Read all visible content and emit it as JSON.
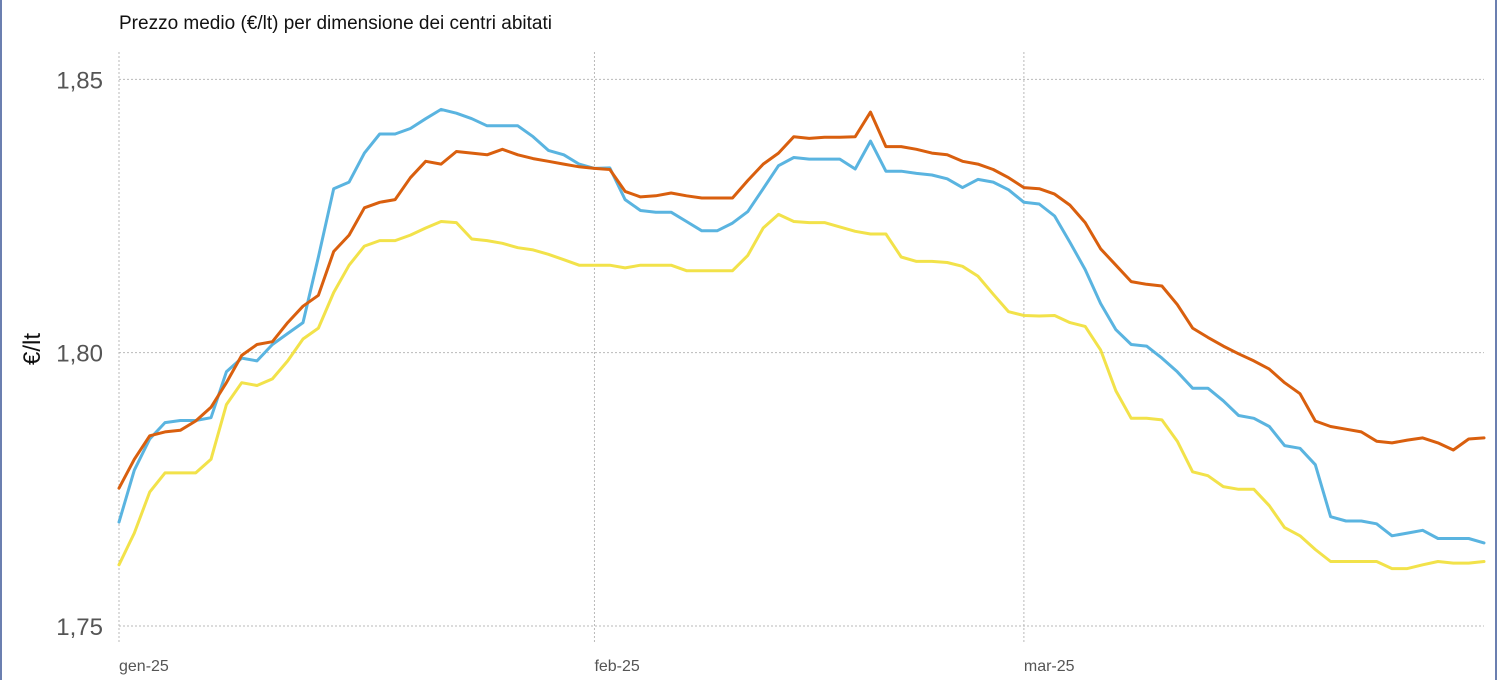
{
  "title": "Prezzo medio (€/lt) per dimensione dei centri abitati",
  "chart_data": {
    "type": "line",
    "title": "Prezzo medio (€/lt) per dimensione dei centri abitati",
    "xlabel": "",
    "ylabel": "€/lt",
    "ylim": [
      1.75,
      1.855
    ],
    "yticks": [
      1.75,
      1.8,
      1.85
    ],
    "ytick_labels": [
      "1,75",
      "1,80",
      "1,85"
    ],
    "xticks": [
      "2025-01-01",
      "2025-02-01",
      "2025-03-01"
    ],
    "xtick_labels": [
      "gen-25",
      "feb-25",
      "mar-25"
    ],
    "x_range": [
      "2025-01-01",
      "2025-03-31"
    ],
    "grid": true,
    "legend": "none",
    "colors": {
      "orange": "#d95f0e",
      "blue": "#5ab4e0",
      "yellow": "#f2e24a",
      "grid": "#b9b9b9"
    },
    "x": [
      "2025-01-01",
      "2025-01-02",
      "2025-01-03",
      "2025-01-04",
      "2025-01-05",
      "2025-01-06",
      "2025-01-07",
      "2025-01-08",
      "2025-01-09",
      "2025-01-10",
      "2025-01-11",
      "2025-01-12",
      "2025-01-13",
      "2025-01-14",
      "2025-01-15",
      "2025-01-16",
      "2025-01-17",
      "2025-01-18",
      "2025-01-19",
      "2025-01-20",
      "2025-01-21",
      "2025-01-22",
      "2025-01-23",
      "2025-01-24",
      "2025-01-25",
      "2025-01-26",
      "2025-01-27",
      "2025-01-28",
      "2025-01-29",
      "2025-01-30",
      "2025-01-31",
      "2025-02-01",
      "2025-02-02",
      "2025-02-03",
      "2025-02-04",
      "2025-02-05",
      "2025-02-06",
      "2025-02-07",
      "2025-02-08",
      "2025-02-09",
      "2025-02-10",
      "2025-02-11",
      "2025-02-12",
      "2025-02-13",
      "2025-02-14",
      "2025-02-15",
      "2025-02-16",
      "2025-02-17",
      "2025-02-18",
      "2025-02-19",
      "2025-02-20",
      "2025-02-21",
      "2025-02-22",
      "2025-02-23",
      "2025-02-24",
      "2025-02-25",
      "2025-02-26",
      "2025-02-27",
      "2025-02-28",
      "2025-03-01",
      "2025-03-02",
      "2025-03-03",
      "2025-03-04",
      "2025-03-05",
      "2025-03-06",
      "2025-03-07",
      "2025-03-08",
      "2025-03-09",
      "2025-03-10",
      "2025-03-11",
      "2025-03-12",
      "2025-03-13",
      "2025-03-14",
      "2025-03-15",
      "2025-03-16",
      "2025-03-17",
      "2025-03-18",
      "2025-03-19",
      "2025-03-20",
      "2025-03-21",
      "2025-03-22",
      "2025-03-23",
      "2025-03-24",
      "2025-03-25",
      "2025-03-26",
      "2025-03-27",
      "2025-03-28",
      "2025-03-29",
      "2025-03-30",
      "2025-03-31"
    ],
    "series": [
      {
        "color": "#d95f0e",
        "values": [
          1.7752,
          1.7805,
          1.7848,
          1.7855,
          1.7858,
          1.7875,
          1.79,
          1.7945,
          1.7995,
          1.8015,
          1.802,
          1.8055,
          1.8085,
          1.8105,
          1.8185,
          1.8215,
          1.8265,
          1.8275,
          1.828,
          1.832,
          1.835,
          1.8345,
          1.8368,
          1.8365,
          1.8362,
          1.8372,
          1.8362,
          1.8355,
          1.835,
          1.8345,
          1.834,
          1.8337,
          1.8335,
          1.8295,
          1.8285,
          1.8287,
          1.8292,
          1.8287,
          1.8283,
          1.8283,
          1.8283,
          1.8315,
          1.8345,
          1.8365,
          1.8395,
          1.8392,
          1.8394,
          1.8394,
          1.8395,
          1.844,
          1.8377,
          1.8377,
          1.8372,
          1.8365,
          1.8362,
          1.835,
          1.8345,
          1.8335,
          1.832,
          1.8302,
          1.83,
          1.829,
          1.827,
          1.8238,
          1.819,
          1.816,
          1.813,
          1.8125,
          1.8122,
          1.8088,
          1.8045,
          1.8028,
          1.8012,
          1.7998,
          1.7985,
          1.797,
          1.7945,
          1.7925,
          1.7875,
          1.7865,
          1.786,
          1.7855,
          1.7838,
          1.7835,
          1.784,
          1.7844,
          1.7835,
          1.7822,
          1.7842,
          1.7844
        ]
      },
      {
        "color": "#5ab4e0",
        "values": [
          1.769,
          1.7785,
          1.7842,
          1.7872,
          1.7876,
          1.7876,
          1.7881,
          1.7965,
          1.799,
          1.7985,
          1.8015,
          1.8035,
          1.8055,
          1.8175,
          1.83,
          1.8312,
          1.8365,
          1.84,
          1.84,
          1.841,
          1.8428,
          1.8445,
          1.8438,
          1.8428,
          1.8415,
          1.8415,
          1.8415,
          1.8395,
          1.837,
          1.8362,
          1.8345,
          1.8337,
          1.8338,
          1.828,
          1.826,
          1.8257,
          1.8257,
          1.824,
          1.8223,
          1.8223,
          1.8237,
          1.8258,
          1.83,
          1.8342,
          1.8357,
          1.8354,
          1.8354,
          1.8354,
          1.8336,
          1.8387,
          1.8332,
          1.8332,
          1.8328,
          1.8325,
          1.8318,
          1.8302,
          1.8317,
          1.8312,
          1.8298,
          1.8275,
          1.8272,
          1.825,
          1.8202,
          1.8152,
          1.809,
          1.8042,
          1.8015,
          1.8012,
          1.799,
          1.7965,
          1.7935,
          1.7935,
          1.7912,
          1.7885,
          1.788,
          1.7865,
          1.783,
          1.7825,
          1.7795,
          1.77,
          1.7692,
          1.7692,
          1.7687,
          1.7665,
          1.767,
          1.7675,
          1.766,
          1.766,
          1.766,
          1.7652
        ]
      },
      {
        "color": "#f2e24a",
        "values": [
          1.7612,
          1.767,
          1.7745,
          1.778,
          1.778,
          1.778,
          1.7805,
          1.7905,
          1.7945,
          1.794,
          1.7952,
          1.7985,
          1.8025,
          1.8045,
          1.811,
          1.816,
          1.8195,
          1.8205,
          1.8205,
          1.8215,
          1.8228,
          1.824,
          1.8238,
          1.8208,
          1.8205,
          1.82,
          1.8192,
          1.8188,
          1.818,
          1.817,
          1.816,
          1.816,
          1.816,
          1.8155,
          1.816,
          1.816,
          1.816,
          1.815,
          1.815,
          1.815,
          1.815,
          1.8178,
          1.8228,
          1.8253,
          1.824,
          1.8238,
          1.8238,
          1.823,
          1.8222,
          1.8217,
          1.8217,
          1.8175,
          1.8167,
          1.8167,
          1.8165,
          1.8158,
          1.814,
          1.8107,
          1.8075,
          1.8068,
          1.8067,
          1.8068,
          1.8055,
          1.8048,
          1.8005,
          1.793,
          1.788,
          1.788,
          1.7877,
          1.7838,
          1.7782,
          1.7775,
          1.7755,
          1.775,
          1.775,
          1.772,
          1.768,
          1.7665,
          1.764,
          1.7618,
          1.7618,
          1.7618,
          1.7618,
          1.7605,
          1.7605,
          1.7612,
          1.7618,
          1.7615,
          1.7615,
          1.7618
        ]
      }
    ]
  }
}
